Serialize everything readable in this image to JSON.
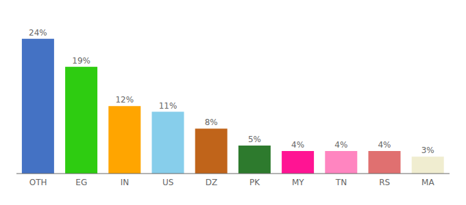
{
  "chart_data": {
    "type": "bar",
    "categories": [
      "OTH",
      "EG",
      "IN",
      "US",
      "DZ",
      "PK",
      "MY",
      "TN",
      "RS",
      "MA"
    ],
    "values": [
      24,
      19,
      12,
      11,
      8,
      5,
      4,
      4,
      4,
      3
    ],
    "value_labels": [
      "24%",
      "19%",
      "12%",
      "11%",
      "8%",
      "5%",
      "4%",
      "4%",
      "4%",
      "3%"
    ],
    "colors": [
      "#4472C4",
      "#2ECC11",
      "#FFA500",
      "#87CEEB",
      "#C0641A",
      "#2D7A2D",
      "#FF1493",
      "#FF85C0",
      "#E07070",
      "#F0EDD0"
    ],
    "ylim": [
      0,
      27
    ],
    "data_labels": true,
    "tick_labels": "x",
    "grid": false
  }
}
